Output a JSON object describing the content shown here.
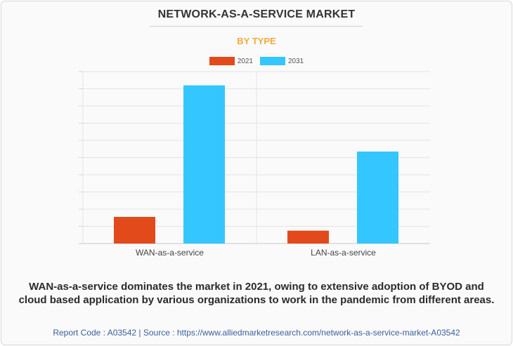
{
  "header": {
    "title": "NETWORK-AS-A-SERVICE MARKET",
    "subtitle": "BY TYPE"
  },
  "chart_data": {
    "type": "bar",
    "title": "NETWORK-AS-A-SERVICE MARKET",
    "subtitle": "BY TYPE",
    "categories": [
      "WAN-as-a-service",
      "LAN-as-a-service"
    ],
    "series": [
      {
        "name": "2021",
        "color": "#e24a1b",
        "values": [
          15.5,
          7.5
        ]
      },
      {
        "name": "2031",
        "color": "#33c6ff",
        "values": [
          92,
          53.5
        ]
      }
    ],
    "ylim": [
      0,
      100
    ],
    "ytick_step": 10,
    "grid": true,
    "ytick_labels_visible": false,
    "legend_position": "top-center",
    "xlabel": "",
    "ylabel": ""
  },
  "caption": "WAN-as-a-service dominates the market in 2021, owing to extensive adoption of BYOD and cloud based application by various organizations to work in the pandemic from different areas.",
  "footer": "Report Code : A03542  |  Source : https://www.alliedmarketresearch.com/network-as-a-service-market-A03542"
}
